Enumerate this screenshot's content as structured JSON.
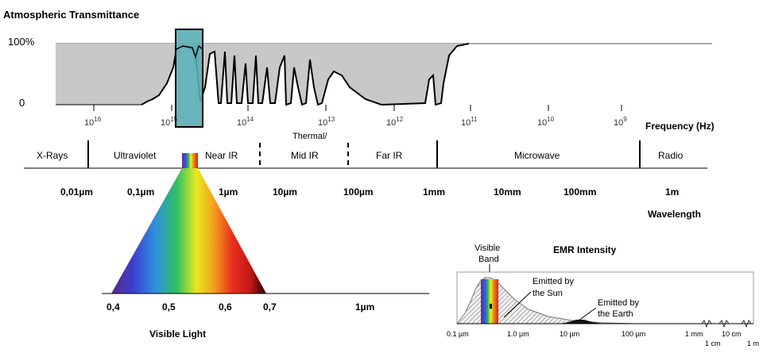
{
  "atmos": {
    "title": "Atmospheric Transmittance",
    "y_top": "100%",
    "y_bottom": "0",
    "freq_ticks": [
      {
        "base": "10",
        "exp": "16"
      },
      {
        "base": "10",
        "exp": "15"
      },
      {
        "base": "10",
        "exp": "14"
      },
      {
        "base": "10",
        "exp": "13"
      },
      {
        "base": "10",
        "exp": "12"
      },
      {
        "base": "10",
        "exp": "11"
      },
      {
        "base": "10",
        "exp": "10"
      },
      {
        "base": "10",
        "exp": "9"
      }
    ],
    "freq_label": "Frequency (Hz)"
  },
  "bands": {
    "thermal": "Thermal/",
    "items": [
      "X-Rays",
      "Ultraviolet",
      "Near IR",
      "Mid IR",
      "Far IR",
      "Microwave",
      "Radio"
    ]
  },
  "wavelength": {
    "ticks": [
      "0,01µm",
      "0,1µm",
      "1µm",
      "10µm",
      "100µm",
      "1mm",
      "10mm",
      "100mm",
      "1m"
    ],
    "label": "Wavelength"
  },
  "visible": {
    "ticks": [
      "0,4",
      "0,5",
      "0,6",
      "0,7",
      "1µm"
    ],
    "label": "Visible Light"
  },
  "emr": {
    "title": "EMR Intensity",
    "visible_band_line1": "Visible",
    "visible_band_line2": "Band",
    "sun_line1": "Emitted by",
    "sun_line2": "the Sun",
    "earth_line1": "Emitted by",
    "earth_line2": "the Earth",
    "ticks": [
      "0.1 µm",
      "1.0 µm",
      "10 µm",
      "100 µm",
      "1 mm",
      "10 cm"
    ],
    "ticks_low": [
      "1 cm",
      "1 m"
    ]
  },
  "colors": {
    "transmittance_fill": "#c8c8c8",
    "highlight": "#5aacb4",
    "spectrum": [
      "#5b2a86",
      "#3b3fd0",
      "#2f8fe0",
      "#2fc060",
      "#d8e020",
      "#f5a020",
      "#e83020",
      "#c01818",
      "#2a0808"
    ]
  }
}
